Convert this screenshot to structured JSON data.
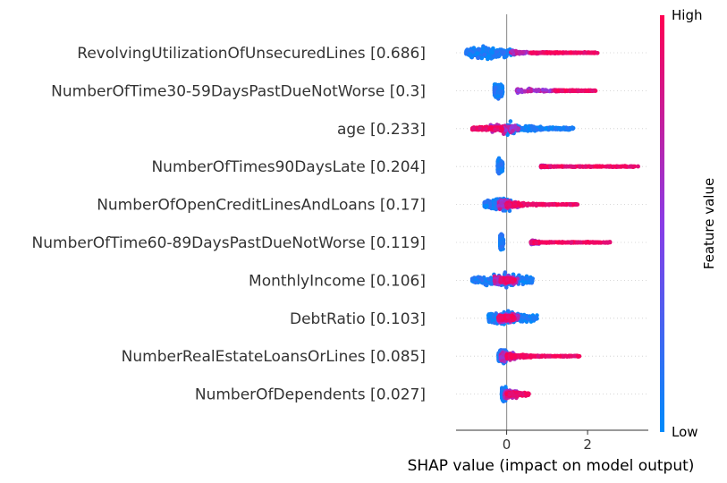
{
  "chart_data": {
    "type": "scatter",
    "subtype": "shap-beeswarm",
    "title": "",
    "xlabel": "SHAP value (impact on model output)",
    "ylabel": "",
    "xlim": [
      -1.25,
      3.5
    ],
    "xticks": [
      0,
      2
    ],
    "grid": false,
    "zero_line": true,
    "features": [
      {
        "label": "RevolvingUtilizationOfUnsecuredLines [0.686]",
        "low_range": [
          -1.0,
          0.2
        ],
        "high_range": [
          0.6,
          2.25
        ],
        "mid_range": [
          0.1,
          1.4
        ],
        "dense_center": -0.5
      },
      {
        "label": "NumberOfTime30-59DaysPastDueNotWorse [0.3]",
        "low_range": [
          -0.3,
          -0.1
        ],
        "high_range": [
          1.2,
          2.2
        ],
        "mid_range": [
          0.25,
          1.3
        ],
        "dense_center": -0.2
      },
      {
        "label": "age [0.233]",
        "low_range": [
          0.0,
          1.65
        ],
        "high_range": [
          -0.85,
          -0.1
        ],
        "mid_range": [
          -0.4,
          0.3
        ],
        "dense_center": -0.1
      },
      {
        "label": "NumberOfTimes90DaysLate [0.204]",
        "low_range": [
          -0.22,
          -0.1
        ],
        "high_range": [
          0.85,
          3.25
        ],
        "mid_range": [
          0.85,
          1.1
        ],
        "dense_center": -0.16
      },
      {
        "label": "NumberOfOpenCreditLinesAndLoans [0.17]",
        "low_range": [
          -0.55,
          0.1
        ],
        "high_range": [
          0.0,
          1.75
        ],
        "mid_range": [
          -0.2,
          0.3
        ],
        "dense_center": 0.0
      },
      {
        "label": "NumberOfTime60-89DaysPastDueNotWorse [0.119]",
        "low_range": [
          -0.16,
          -0.08
        ],
        "high_range": [
          0.6,
          2.6
        ],
        "mid_range": [
          0.6,
          0.8
        ],
        "dense_center": -0.12
      },
      {
        "label": "MonthlyIncome [0.106]",
        "low_range": [
          -0.85,
          0.65
        ],
        "high_range": [
          -0.15,
          0.2
        ],
        "mid_range": [
          -0.3,
          0.3
        ],
        "dense_center": -0.05
      },
      {
        "label": "DebtRatio [0.103]",
        "low_range": [
          -0.45,
          0.75
        ],
        "high_range": [
          -0.2,
          0.2
        ],
        "mid_range": [
          -0.2,
          0.3
        ],
        "dense_center": 0.0
      },
      {
        "label": "NumberRealEstateLoansOrLines [0.085]",
        "low_range": [
          -0.2,
          0.0
        ],
        "high_range": [
          0.0,
          1.8
        ],
        "mid_range": [
          -0.15,
          0.3
        ],
        "dense_center": -0.05
      },
      {
        "label": "NumberOfDependents [0.027]",
        "low_range": [
          -0.12,
          0.0
        ],
        "high_range": [
          0.0,
          0.55
        ],
        "mid_range": [
          -0.05,
          0.25
        ],
        "dense_center": -0.02
      }
    ],
    "colorbar": {
      "label": "Feature value",
      "high_label": "High",
      "low_label": "Low",
      "low_color": "#008bfb",
      "high_color": "#ff0052"
    }
  }
}
